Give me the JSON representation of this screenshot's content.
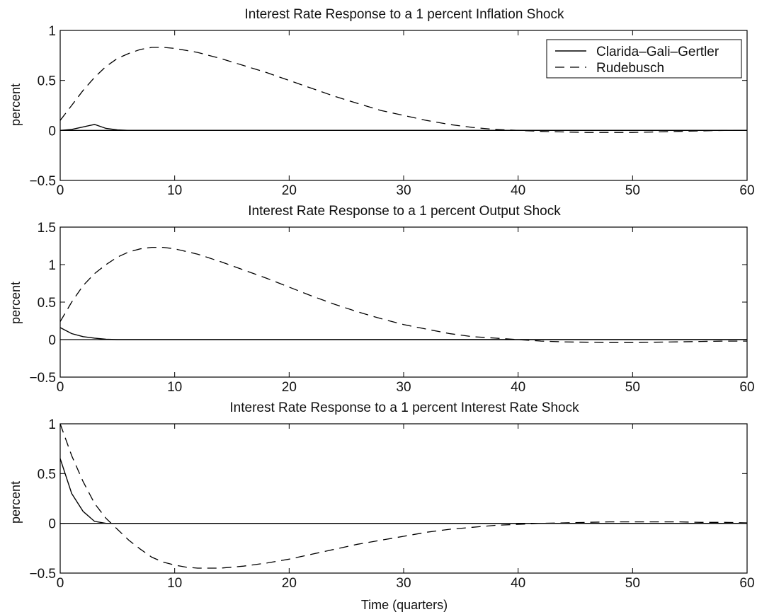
{
  "chart_data": [
    {
      "type": "line",
      "title": "Interest Rate Response to a 1 percent Inflation Shock",
      "ylabel": "percent",
      "xlabel": "",
      "xlim": [
        0,
        60
      ],
      "ylim": [
        -0.5,
        1
      ],
      "xticks": [
        "0",
        "10",
        "20",
        "30",
        "40",
        "50",
        "60"
      ],
      "yticks": [
        "1",
        "0.5",
        "0",
        "−0.5"
      ],
      "ytick_values": [
        1,
        0.5,
        0,
        -0.5
      ],
      "legend": {
        "placement": "top-right",
        "entries": [
          "Clarida–Gali–Gertler",
          "Rudebusch"
        ]
      },
      "series": [
        {
          "name": "Clarida–Gali–Gertler",
          "style": "solid",
          "x": [
            0,
            1,
            2,
            3,
            4,
            5,
            6,
            10,
            20,
            30,
            40,
            50,
            60
          ],
          "y": [
            0,
            0.01,
            0.035,
            0.06,
            0.02,
            0.005,
            0,
            0,
            0,
            0,
            0,
            0,
            0
          ]
        },
        {
          "name": "Rudebusch",
          "style": "dashed",
          "x": [
            0,
            1,
            2,
            3,
            4,
            5,
            6,
            7,
            8,
            9,
            10,
            12,
            14,
            16,
            18,
            20,
            22,
            24,
            26,
            28,
            30,
            32,
            34,
            36,
            38,
            40,
            42,
            44,
            46,
            48,
            50,
            52,
            54,
            56,
            58,
            60
          ],
          "y": [
            0.1,
            0.25,
            0.4,
            0.53,
            0.64,
            0.72,
            0.77,
            0.81,
            0.83,
            0.83,
            0.82,
            0.78,
            0.72,
            0.65,
            0.58,
            0.5,
            0.42,
            0.34,
            0.27,
            0.2,
            0.15,
            0.1,
            0.06,
            0.03,
            0.01,
            0,
            -0.01,
            -0.015,
            -0.02,
            -0.02,
            -0.02,
            -0.015,
            -0.01,
            -0.005,
            0,
            0
          ]
        }
      ]
    },
    {
      "type": "line",
      "title": "Interest Rate Response to a 1 percent Output Shock",
      "ylabel": "percent",
      "xlabel": "",
      "xlim": [
        0,
        60
      ],
      "ylim": [
        -0.5,
        1.5
      ],
      "xticks": [
        "0",
        "10",
        "20",
        "30",
        "40",
        "50",
        "60"
      ],
      "yticks": [
        "1.5",
        "1",
        "0.5",
        "0",
        "−0.5"
      ],
      "ytick_values": [
        1.5,
        1,
        0.5,
        0,
        -0.5
      ],
      "series": [
        {
          "name": "Clarida–Gali–Gertler",
          "style": "solid",
          "x": [
            0,
            1,
            2,
            3,
            4,
            5,
            10,
            20,
            30,
            40,
            50,
            60
          ],
          "y": [
            0.16,
            0.08,
            0.04,
            0.02,
            0.005,
            0,
            0,
            0,
            0,
            0,
            0,
            0
          ]
        },
        {
          "name": "Rudebusch",
          "style": "dashed",
          "x": [
            0,
            1,
            2,
            3,
            4,
            5,
            6,
            7,
            8,
            9,
            10,
            12,
            14,
            16,
            18,
            20,
            22,
            24,
            26,
            28,
            30,
            32,
            34,
            36,
            38,
            40,
            42,
            44,
            46,
            48,
            50,
            52,
            54,
            56,
            58,
            60
          ],
          "y": [
            0.24,
            0.5,
            0.72,
            0.88,
            1.0,
            1.1,
            1.17,
            1.21,
            1.23,
            1.23,
            1.21,
            1.14,
            1.04,
            0.93,
            0.82,
            0.7,
            0.58,
            0.47,
            0.37,
            0.28,
            0.2,
            0.14,
            0.08,
            0.04,
            0.02,
            0,
            -0.02,
            -0.03,
            -0.035,
            -0.04,
            -0.04,
            -0.035,
            -0.03,
            -0.025,
            -0.02,
            -0.02
          ]
        }
      ]
    },
    {
      "type": "line",
      "title": "Interest Rate Response to a 1 percent Interest Rate Shock",
      "ylabel": "percent",
      "xlabel": "Time (quarters)",
      "xlim": [
        0,
        60
      ],
      "ylim": [
        -0.5,
        1
      ],
      "xticks": [
        "0",
        "10",
        "20",
        "30",
        "40",
        "50",
        "60"
      ],
      "yticks": [
        "1",
        "0.5",
        "0",
        "−0.5"
      ],
      "ytick_values": [
        1,
        0.5,
        0,
        -0.5
      ],
      "series": [
        {
          "name": "Clarida–Gali–Gertler",
          "style": "solid",
          "x": [
            0,
            1,
            2,
            3,
            4,
            5,
            10,
            20,
            30,
            40,
            50,
            60
          ],
          "y": [
            0.65,
            0.3,
            0.12,
            0.02,
            0,
            0,
            0,
            0,
            0,
            0,
            0,
            0
          ]
        },
        {
          "name": "Rudebusch",
          "style": "dashed",
          "x": [
            0,
            1,
            2,
            3,
            4,
            5,
            6,
            7,
            8,
            9,
            10,
            11,
            12,
            13,
            14,
            16,
            18,
            20,
            22,
            24,
            26,
            28,
            30,
            32,
            34,
            36,
            38,
            40,
            42,
            44,
            46,
            48,
            50,
            52,
            54,
            56,
            58,
            60
          ],
          "y": [
            1.0,
            0.68,
            0.42,
            0.2,
            0.05,
            -0.06,
            -0.17,
            -0.26,
            -0.34,
            -0.39,
            -0.42,
            -0.44,
            -0.45,
            -0.45,
            -0.45,
            -0.43,
            -0.4,
            -0.36,
            -0.31,
            -0.26,
            -0.21,
            -0.17,
            -0.13,
            -0.09,
            -0.06,
            -0.04,
            -0.02,
            -0.01,
            0,
            0.005,
            0.01,
            0.015,
            0.015,
            0.015,
            0.015,
            0.01,
            0.01,
            0.005
          ]
        }
      ]
    }
  ]
}
